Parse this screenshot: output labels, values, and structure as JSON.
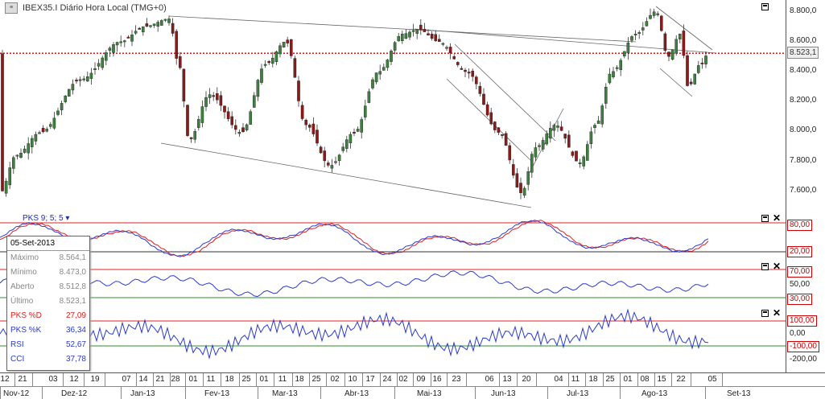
{
  "window": {
    "title": "IBEX35.I Diário Hora Local (TMG+0)",
    "logo_text": "≡"
  },
  "price_pane": {
    "ticks": [
      "8.800,0",
      "8.600,0",
      "8.400,0",
      "8.200,0",
      "8.000,0",
      "7.800,0",
      "7.600,0"
    ],
    "current_price": "8.523,1"
  },
  "pks_pane": {
    "title": "PKS 9; 5; 5 ▾",
    "levels": [
      "80,00",
      "20,00"
    ]
  },
  "rsi_pane": {
    "levels": [
      "70,00",
      "50,00",
      "30,00"
    ]
  },
  "cci_pane": {
    "levels": [
      "100,00",
      "0,00",
      "-100,00",
      "-200,00"
    ]
  },
  "infobox": {
    "date": "05-Set-2013",
    "rows": [
      {
        "label": "Máximo",
        "value": "8.564,1"
      },
      {
        "label": "Mínimo",
        "value": "8.473,0"
      },
      {
        "label": "Aberto",
        "value": "8.512,8"
      },
      {
        "label": "Último",
        "value": "8.523,1"
      },
      {
        "label": "PKS %D",
        "value": "27,09"
      },
      {
        "label": "PKS %K",
        "value": "36,34"
      },
      {
        "label": "RSI",
        "value": "52,67"
      },
      {
        "label": "CCI",
        "value": "37,78"
      }
    ]
  },
  "x_axis": {
    "days": [
      "12",
      "21",
      "03",
      "12",
      "19",
      "07",
      "14",
      "21",
      "28",
      "01",
      "11",
      "18",
      "25",
      "01",
      "11",
      "18",
      "25",
      "02",
      "10",
      "17",
      "24",
      "02",
      "09",
      "16",
      "23",
      "06",
      "13",
      "20",
      "04",
      "11",
      "18",
      "25",
      "01",
      "08",
      "15",
      "22",
      "05"
    ],
    "months": [
      "Nov-12",
      "Dez-12",
      "Jan-13",
      "Fev-13",
      "Mar-13",
      "Abr-13",
      "Mai-13",
      "Jun-13",
      "Jul-13",
      "Ago-13",
      "Set-13"
    ]
  },
  "colors": {
    "up": "#3f7f3f",
    "down": "#8b1a1a",
    "ref": "#cc0000",
    "blue": "#2a3ad0",
    "red": "#e02020",
    "green": "#2e8b2e"
  }
}
